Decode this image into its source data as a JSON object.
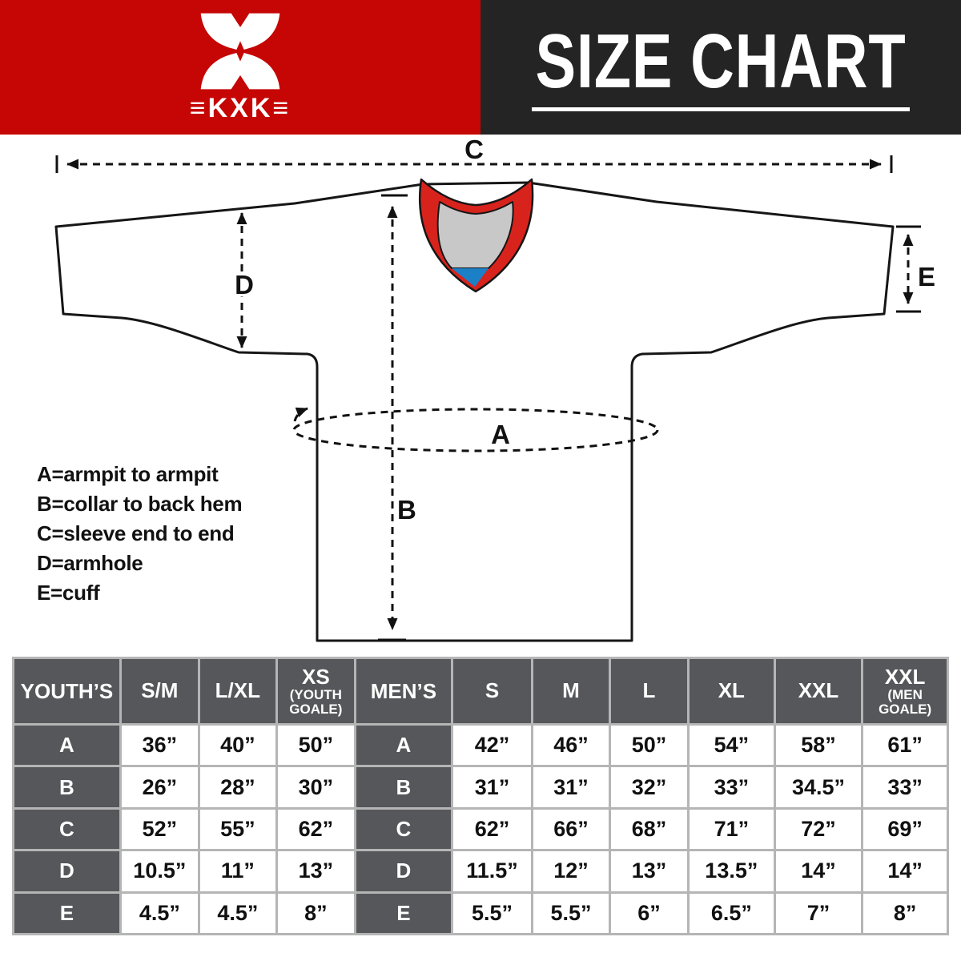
{
  "header": {
    "logo": {
      "icon": "kxk-butterfly-x-logo",
      "text": "≡KXK≡",
      "bg": "#c50604",
      "fg": "#ffffff"
    },
    "title": {
      "text": "SIZE CHART",
      "bg": "#242424",
      "fg": "#ffffff"
    }
  },
  "diagram": {
    "markers": {
      "A": "A",
      "B": "B",
      "C": "C",
      "D": "D",
      "E": "E"
    },
    "legend": [
      "A=armpit to armpit",
      "B=collar to back hem",
      "C=sleeve end to end",
      "D=armhole",
      "E=cuff"
    ],
    "jersey_colors": {
      "body": "#ffffff",
      "outline": "#161616",
      "collar_trim": "#d8231d",
      "collar_inner": "#c8c8c8",
      "collar_accent": "#1b80c6"
    }
  },
  "size_table": {
    "style": {
      "header_bg": "#56575b",
      "grid_line": "#b5b5b5",
      "cell_bg": "#ffffff"
    },
    "youth": {
      "label": "YOUTH’S",
      "columns": [
        {
          "main": "S/M"
        },
        {
          "main": "L/XL"
        },
        {
          "main": "XS",
          "sub": "(YOUTH GOALE)"
        }
      ],
      "row_keys": [
        "A",
        "B",
        "C",
        "D",
        "E"
      ],
      "rows": [
        [
          "36”",
          "40”",
          "50”"
        ],
        [
          "26”",
          "28”",
          "30”"
        ],
        [
          "52”",
          "55”",
          "62”"
        ],
        [
          "10.5”",
          "11”",
          "13”"
        ],
        [
          "4.5”",
          "4.5”",
          "8”"
        ]
      ]
    },
    "men": {
      "label": "MEN’S",
      "columns": [
        {
          "main": "S"
        },
        {
          "main": "M"
        },
        {
          "main": "L"
        },
        {
          "main": "XL"
        },
        {
          "main": "XXL"
        },
        {
          "main": "XXL",
          "sub": "(MEN GOALE)"
        }
      ],
      "row_keys": [
        "A",
        "B",
        "C",
        "D",
        "E"
      ],
      "rows": [
        [
          "42”",
          "46”",
          "50”",
          "54”",
          "58”",
          "61”"
        ],
        [
          "31”",
          "31”",
          "32”",
          "33”",
          "34.5”",
          "33”"
        ],
        [
          "62”",
          "66”",
          "68”",
          "71”",
          "72”",
          "69”"
        ],
        [
          "11.5”",
          "12”",
          "13”",
          "13.5”",
          "14”",
          "14”"
        ],
        [
          "5.5”",
          "5.5”",
          "6”",
          "6.5”",
          "7”",
          "8”"
        ]
      ]
    }
  }
}
